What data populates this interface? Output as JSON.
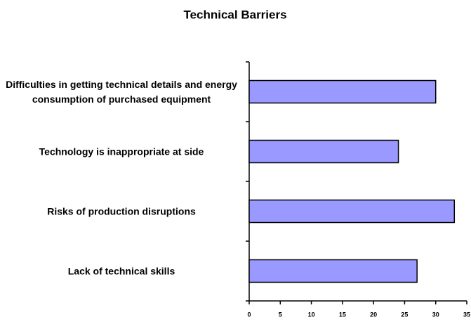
{
  "chart_data": {
    "type": "bar",
    "orientation": "horizontal",
    "title": "Technical Barriers",
    "categories": [
      "Difficulties in getting technical details and energy consumption of purchased equipment",
      "Technology is inappropriate at side",
      "Risks of production disruptions",
      "Lack of technical skills"
    ],
    "values": [
      30,
      24,
      33,
      27
    ],
    "color": "#9999ff",
    "xlim": [
      0,
      35
    ],
    "xticks": [
      0,
      5,
      10,
      15,
      20,
      25,
      30,
      35
    ]
  }
}
